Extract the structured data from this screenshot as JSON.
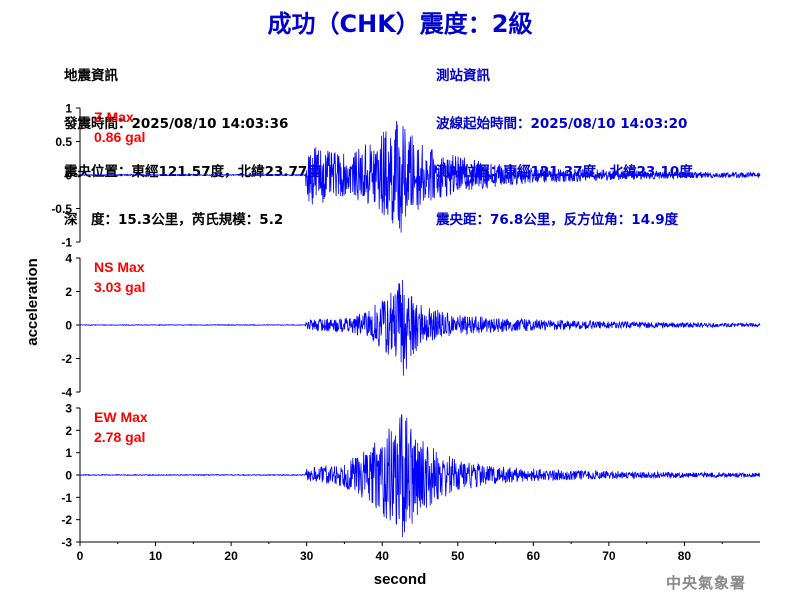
{
  "title": "成功（CHK）震度：2級",
  "event_info": {
    "header": "地震資訊",
    "origin_time": "發震時間：2025/08/10 14:03:36",
    "epicenter": "震央位置：東經121.57度，北緯23.77度",
    "depth_magnitude": "深　度：15.3公里，芮氏規模：5.2"
  },
  "station_info": {
    "header": "測站資訊",
    "waveform_start": "波線起始時間：2025/08/10 14:03:20",
    "station_location": "測站位置：東經121.37度，北緯23.10度",
    "distance_azimuth": "震央距：76.8公里，反方位角：14.9度"
  },
  "credit": "中央氣象署",
  "colors": {
    "title": "#0000cc",
    "trace": "#0000ff",
    "max_label": "#ff0000",
    "station_text": "#0000cc",
    "credit": "#888888"
  },
  "chart_data": {
    "type": "line",
    "xlabel": "second",
    "ylabel": "acceleration",
    "xlim": [
      0,
      90
    ],
    "xticks": [
      "0",
      "10",
      "20",
      "30",
      "40",
      "50",
      "60",
      "70",
      "80"
    ],
    "panels": [
      {
        "component": "Z",
        "label": "Z Max",
        "max_text": "0.86 gal",
        "ylim": [
          -1,
          1
        ],
        "yticks": [
          "1",
          "0.5",
          "0",
          "-0.5",
          "-1"
        ],
        "yvalues": [
          1,
          0.5,
          0,
          -0.5,
          -1
        ],
        "peak": 0.86,
        "peak_time": 42.5,
        "p_arrival": 30,
        "envelope": [
          [
            0,
            0.008
          ],
          [
            29.8,
            0.008
          ],
          [
            30,
            0.35
          ],
          [
            31,
            0.5
          ],
          [
            33,
            0.35
          ],
          [
            36,
            0.3
          ],
          [
            38,
            0.5
          ],
          [
            40,
            0.65
          ],
          [
            42,
            0.86
          ],
          [
            44,
            0.6
          ],
          [
            46,
            0.4
          ],
          [
            50,
            0.28
          ],
          [
            55,
            0.18
          ],
          [
            60,
            0.12
          ],
          [
            70,
            0.08
          ],
          [
            80,
            0.05
          ],
          [
            90,
            0.04
          ]
        ]
      },
      {
        "component": "NS",
        "label": "NS Max",
        "max_text": "3.03 gal",
        "ylim": [
          -4,
          4
        ],
        "yticks": [
          "4",
          "2",
          "0",
          "-2",
          "-4"
        ],
        "yvalues": [
          4,
          2,
          0,
          -2,
          -4
        ],
        "peak": 3.03,
        "peak_time": 42.8,
        "p_arrival": 30,
        "envelope": [
          [
            0,
            0.02
          ],
          [
            29.8,
            0.02
          ],
          [
            30,
            0.3
          ],
          [
            32,
            0.4
          ],
          [
            36,
            0.45
          ],
          [
            38,
            0.9
          ],
          [
            40,
            1.6
          ],
          [
            42,
            2.6
          ],
          [
            43,
            3.03
          ],
          [
            44,
            1.8
          ],
          [
            46,
            1.1
          ],
          [
            50,
            0.6
          ],
          [
            55,
            0.45
          ],
          [
            60,
            0.35
          ],
          [
            70,
            0.22
          ],
          [
            80,
            0.15
          ],
          [
            90,
            0.1
          ]
        ]
      },
      {
        "component": "EW",
        "label": "EW Max",
        "max_text": "2.78 gal",
        "ylim": [
          -3,
          3
        ],
        "yticks": [
          "3",
          "2",
          "1",
          "0",
          "-1",
          "-2",
          "-3"
        ],
        "yvalues": [
          3,
          2,
          1,
          0,
          -1,
          -2,
          -3
        ],
        "peak": 2.78,
        "peak_time": 42.7,
        "p_arrival": 30,
        "envelope": [
          [
            0,
            0.02
          ],
          [
            29.8,
            0.02
          ],
          [
            30,
            0.3
          ],
          [
            32,
            0.4
          ],
          [
            35,
            0.55
          ],
          [
            38,
            1.2
          ],
          [
            40,
            1.8
          ],
          [
            42,
            2.6
          ],
          [
            43,
            2.78
          ],
          [
            45,
            1.8
          ],
          [
            47,
            1.2
          ],
          [
            50,
            0.7
          ],
          [
            55,
            0.4
          ],
          [
            60,
            0.28
          ],
          [
            70,
            0.18
          ],
          [
            80,
            0.12
          ],
          [
            90,
            0.09
          ]
        ]
      }
    ]
  }
}
